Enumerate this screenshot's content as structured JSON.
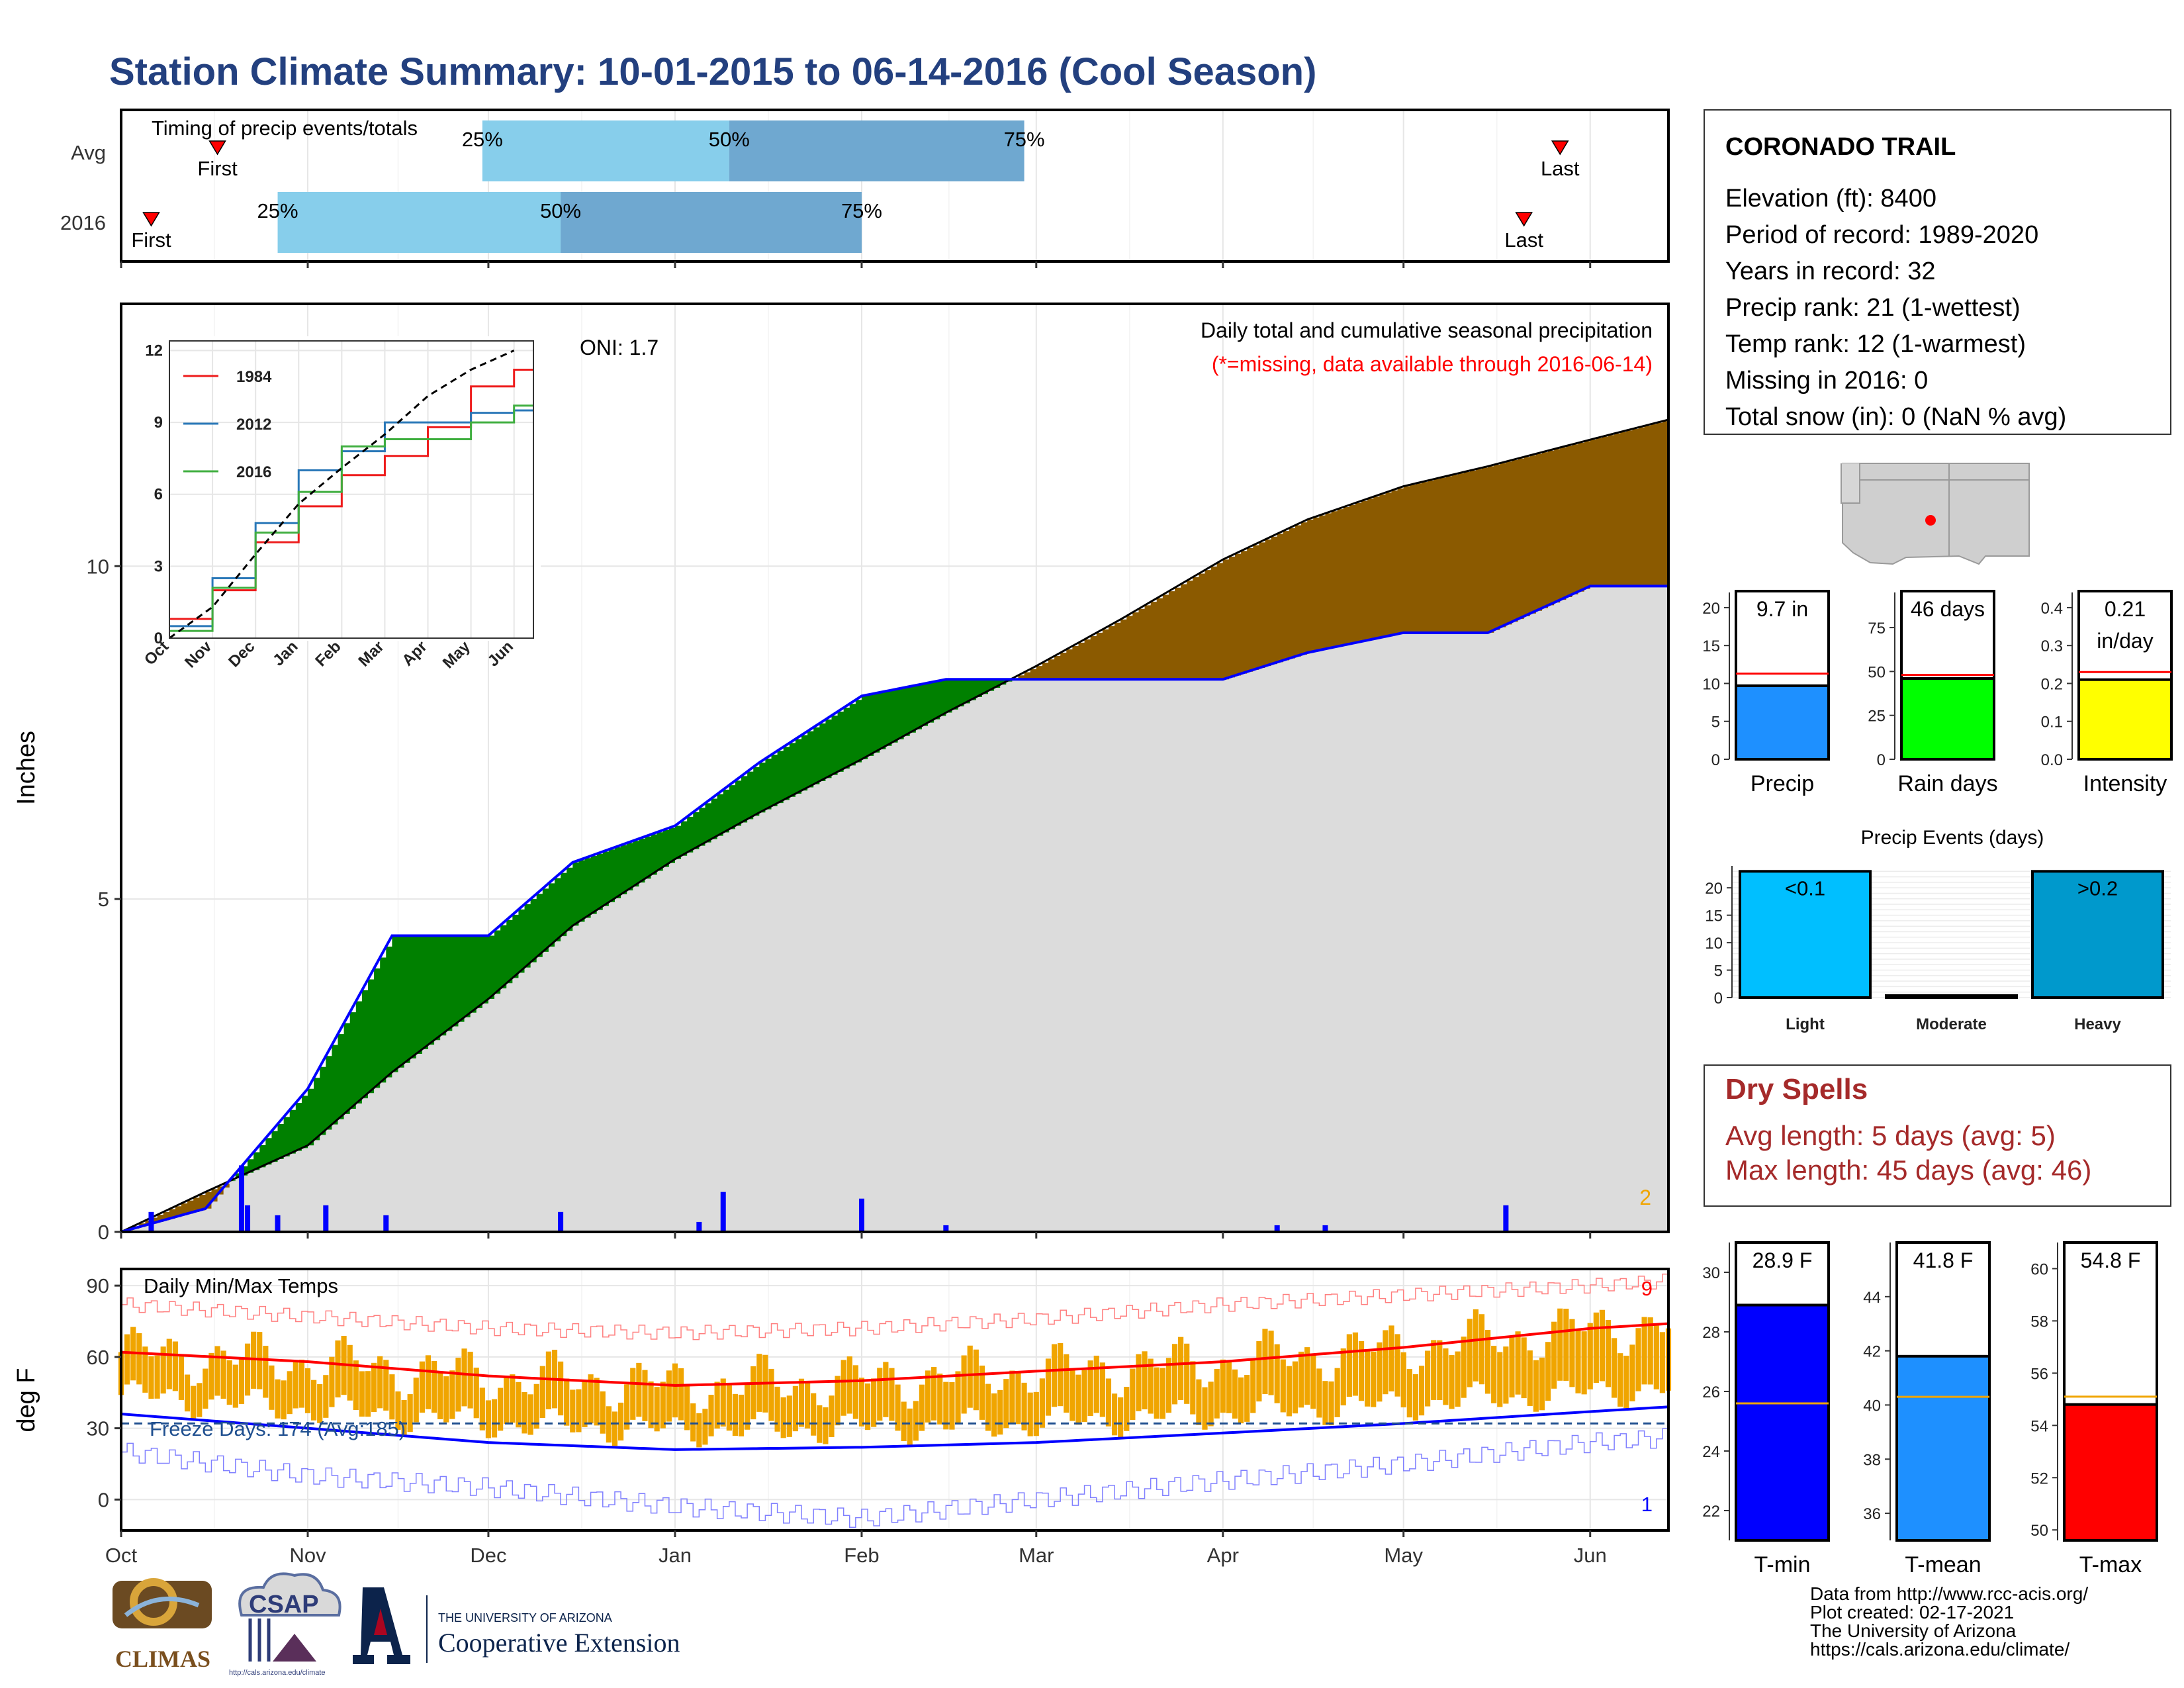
{
  "title": "Station Climate Summary: 10-01-2015 to 06-14-2016 (Cool Season)",
  "timing_panel": {
    "label": "Timing of precip events/totals",
    "rows": [
      {
        "name": "Avg",
        "first": "Oct 17",
        "p25": "Nov 30",
        "p50": "Jan 10",
        "p75": "Feb 28",
        "last": "May 27"
      },
      {
        "name": "2016",
        "first": "Oct 6",
        "p25": "Oct 27",
        "p50": "Dec 13",
        "p75": "Feb 1",
        "last": "May 21"
      }
    ],
    "labels": {
      "first": "First",
      "last": "Last",
      "p25": "25%",
      "p50": "50%",
      "p75": "75%"
    },
    "colors": {
      "q1": "#87ceeb",
      "q2": "#6fa8d0",
      "marker": "#ff0000"
    }
  },
  "precip_panel": {
    "ylabel": "Inches",
    "oni": "ONI: 1.7",
    "legend_line1": "Daily total and cumulative seasonal precipitation",
    "legend_line2": "(*=missing, data available through 2016-06-14)",
    "count_label": "2",
    "month_labels": [
      "Oct",
      "Nov",
      "Dec",
      "Jan",
      "Feb",
      "Mar",
      "Apr",
      "May",
      "Jun"
    ],
    "yticks": [
      "0",
      "5",
      "10"
    ],
    "colors": {
      "fill_above": "#008000",
      "fill_below": "#8b5a00",
      "normal": "#dcdcdc",
      "obs_line": "#0000ff"
    }
  },
  "inset": {
    "yticks": [
      "0",
      "3",
      "6",
      "9",
      "12"
    ],
    "xticks": [
      "Oct",
      "Nov",
      "Dec",
      "Jan",
      "Feb",
      "Mar",
      "Apr",
      "May",
      "Jun"
    ],
    "legend": [
      {
        "name": "1984",
        "color": "#ee1c1c"
      },
      {
        "name": "2012",
        "color": "#2a78b8"
      },
      {
        "name": "2016",
        "color": "#3fae3f"
      }
    ]
  },
  "temp_panel": {
    "ylabel": "deg F",
    "label": "Daily Min/Max Temps",
    "freeze_label": "Freeze Days: 174 (Avg:185)",
    "count_max": "9",
    "count_min": "1",
    "yticks": [
      "0",
      "30",
      "60",
      "90"
    ],
    "colors": {
      "bars": "#f0a500",
      "max_line": "#ff0000",
      "min_line": "#0000ff",
      "freeze": "#1f4f8f"
    }
  },
  "station_box": {
    "name": "CORONADO TRAIL",
    "lines": [
      "Elevation (ft): 8400",
      "Period of record: 1989-2020",
      "Years in record: 32",
      "Precip rank: 21 (1-wettest)",
      "Temp rank: 12 (1-warmest)",
      "Missing in 2016: 0",
      "Total snow (in): 0 (NaN % avg)"
    ]
  },
  "dry_spells": {
    "title": "Dry Spells",
    "avg": "Avg length: 5 days (avg: 5)",
    "max": "Max length: 45 days (avg: 46)"
  },
  "precip_events": {
    "title": "Precip Events (days)",
    "categories": [
      "Light",
      "Moderate",
      "Heavy"
    ],
    "bar_labels": [
      "<0.1",
      "",
      ">0.2"
    ],
    "yticks": [
      "0",
      "5",
      "10",
      "15",
      "20"
    ]
  },
  "summary_tick_labels": {
    "precip": [
      "0",
      "5",
      "10",
      "15",
      "20"
    ],
    "rain_days": [
      "0",
      "25",
      "50",
      "75"
    ],
    "intensity": [
      "0.0",
      "0.1",
      "0.2",
      "0.3",
      "0.4"
    ],
    "tmin": [
      "22",
      "24",
      "26",
      "28",
      "30"
    ],
    "tmean": [
      "36",
      "38",
      "40",
      "42",
      "44"
    ],
    "tmax": [
      "50",
      "52",
      "54",
      "56",
      "58",
      "60"
    ]
  },
  "chart_data": [
    {
      "type": "bar",
      "title": "Timing of precip events/totals",
      "categories": [
        "Avg",
        "2016"
      ],
      "series": [
        {
          "name": "25%",
          "values": [
            "Nov 30",
            "Oct 27"
          ]
        },
        {
          "name": "50%",
          "values": [
            "Jan 10",
            "Dec 13"
          ]
        },
        {
          "name": "75%",
          "values": [
            "Feb 28",
            "Feb 1"
          ]
        }
      ]
    },
    {
      "type": "area",
      "title": "Daily total and cumulative seasonal precipitation",
      "ylabel": "Inches",
      "ylim": [
        0,
        12.2
      ],
      "x": [
        "2015-10-01",
        "2015-10-15",
        "2015-11-01",
        "2015-11-15",
        "2015-12-01",
        "2015-12-15",
        "2016-01-01",
        "2016-01-15",
        "2016-02-01",
        "2016-02-15",
        "2016-03-01",
        "2016-03-15",
        "2016-04-01",
        "2016-04-15",
        "2016-05-01",
        "2016-05-15",
        "2016-06-01",
        "2016-06-14"
      ],
      "series": [
        {
          "name": "2016",
          "values": [
            0.0,
            0.35,
            2.15,
            4.45,
            4.45,
            5.55,
            6.1,
            7.05,
            8.05,
            8.3,
            8.3,
            8.3,
            8.3,
            8.7,
            9.0,
            9.0,
            9.7,
            9.7
          ]
        },
        {
          "name": "Average",
          "values": [
            0.0,
            0.6,
            1.3,
            2.4,
            3.5,
            4.6,
            5.6,
            6.3,
            7.1,
            7.8,
            8.5,
            9.2,
            10.1,
            10.7,
            11.2,
            11.5,
            11.9,
            12.2
          ]
        }
      ],
      "daily_precip": [
        {
          "date": "2015-10-06",
          "value": 0.3
        },
        {
          "date": "2015-10-21",
          "value": 1.0
        },
        {
          "date": "2015-10-22",
          "value": 0.4
        },
        {
          "date": "2015-10-27",
          "value": 0.25
        },
        {
          "date": "2015-11-04",
          "value": 0.4
        },
        {
          "date": "2015-11-14",
          "value": 0.25
        },
        {
          "date": "2015-12-13",
          "value": 0.3
        },
        {
          "date": "2016-01-05",
          "value": 0.15
        },
        {
          "date": "2016-01-09",
          "value": 0.6
        },
        {
          "date": "2016-02-01",
          "value": 0.5
        },
        {
          "date": "2016-02-15",
          "value": 0.1
        },
        {
          "date": "2016-04-10",
          "value": 0.1
        },
        {
          "date": "2016-04-18",
          "value": 0.1
        },
        {
          "date": "2016-05-18",
          "value": 0.4
        }
      ]
    },
    {
      "type": "line",
      "title": "",
      "ylim": [
        0,
        12
      ],
      "x": [
        "Oct",
        "Nov",
        "Dec",
        "Jan",
        "Feb",
        "Mar",
        "Apr",
        "May",
        "Jun"
      ],
      "series": [
        {
          "name": "1984",
          "values": [
            0.8,
            2.0,
            4.0,
            5.5,
            6.8,
            7.6,
            8.8,
            10.5,
            11.2
          ]
        },
        {
          "name": "2012",
          "values": [
            0.5,
            2.5,
            4.8,
            7.0,
            7.8,
            9.0,
            9.0,
            9.4,
            9.5
          ]
        },
        {
          "name": "2016",
          "values": [
            0.3,
            2.1,
            4.4,
            6.1,
            8.0,
            8.3,
            8.3,
            9.0,
            9.7
          ]
        },
        {
          "name": "",
          "values": [
            0.0,
            1.3,
            3.5,
            5.6,
            7.1,
            8.5,
            10.1,
            11.2,
            12.0
          ]
        }
      ]
    },
    {
      "type": "line",
      "title": "Daily Min/Max Temps",
      "ylabel": "deg F",
      "ylim": [
        -10,
        92
      ],
      "x": [
        "2015-10-01",
        "2015-11-01",
        "2015-12-01",
        "2016-01-01",
        "2016-02-01",
        "2016-03-01",
        "2016-04-01",
        "2016-05-01",
        "2016-06-01",
        "2016-06-14"
      ],
      "series": [
        {
          "name": "Avg max",
          "values": [
            62,
            58,
            52,
            48,
            50,
            54,
            58,
            64,
            72,
            74
          ]
        },
        {
          "name": "Avg min",
          "values": [
            36,
            30,
            24,
            21,
            22,
            24,
            28,
            32,
            37,
            39
          ]
        },
        {
          "name": "Record max",
          "values": [
            82,
            77,
            72,
            70,
            72,
            76,
            82,
            86,
            90,
            92
          ]
        },
        {
          "name": "Record min",
          "values": [
            20,
            10,
            5,
            -3,
            -8,
            0,
            8,
            15,
            24,
            26
          ]
        }
      ],
      "freeze_threshold": 32
    },
    {
      "type": "bar",
      "title": "",
      "categories": [
        "Precip",
        "Rain days",
        "Intensity"
      ],
      "series": [
        {
          "name": "2016",
          "values": [
            9.7,
            46,
            0.21
          ]
        },
        {
          "name": "Average",
          "values": [
            11.3,
            48,
            0.23
          ]
        }
      ],
      "data_labels": [
        "9.7 in",
        "46 days",
        "0.21 in/day"
      ]
    },
    {
      "type": "bar",
      "title": "Precip Events (days)",
      "categories": [
        "Light",
        "Moderate",
        "Heavy"
      ],
      "values": [
        23,
        0,
        23
      ]
    },
    {
      "type": "bar",
      "title": "",
      "categories": [
        "T-min",
        "T-mean",
        "T-max"
      ],
      "series": [
        {
          "name": "2016",
          "values": [
            28.9,
            41.8,
            54.8
          ]
        },
        {
          "name": "Average",
          "values": [
            25.6,
            40.3,
            55.1
          ]
        }
      ],
      "data_labels": [
        "28.9 F",
        "41.8 F",
        "54.8 F"
      ]
    }
  ],
  "map": {
    "marker_color": "#ff0000"
  },
  "footer": {
    "lines": [
      "Data from http://www.rcc-acis.org/",
      "Plot created: 02-17-2021",
      "The University of Arizona",
      "https://cals.arizona.edu/climate/"
    ],
    "logo_climas": "CLIMAS",
    "logo_csap": "CSAP",
    "ua_small": "THE UNIVERSITY OF ARIZONA",
    "ua_big": "Cooperative Extension",
    "csap_url": "http://cals.arizona.edu/climate"
  }
}
